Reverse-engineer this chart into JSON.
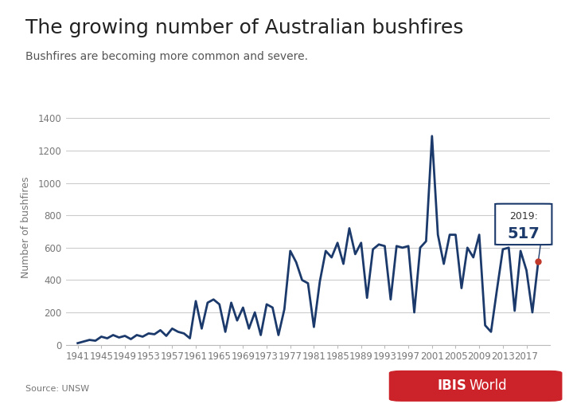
{
  "title": "The growing number of Australian bushfires",
  "subtitle": "Bushfires are becoming more common and severe.",
  "ylabel": "Number of bushfires",
  "source": "Source: UNSW",
  "years": [
    1941,
    1942,
    1943,
    1944,
    1945,
    1946,
    1947,
    1948,
    1949,
    1950,
    1951,
    1952,
    1953,
    1954,
    1955,
    1956,
    1957,
    1958,
    1959,
    1960,
    1961,
    1962,
    1963,
    1964,
    1965,
    1966,
    1967,
    1968,
    1969,
    1970,
    1971,
    1972,
    1973,
    1974,
    1975,
    1976,
    1977,
    1978,
    1979,
    1980,
    1981,
    1982,
    1983,
    1984,
    1985,
    1986,
    1987,
    1988,
    1989,
    1990,
    1991,
    1992,
    1993,
    1994,
    1995,
    1996,
    1997,
    1998,
    1999,
    2000,
    2001,
    2002,
    2003,
    2004,
    2005,
    2006,
    2007,
    2008,
    2009,
    2010,
    2011,
    2012,
    2013,
    2014,
    2015,
    2016,
    2017,
    2018,
    2019
  ],
  "values": [
    10,
    20,
    30,
    25,
    50,
    40,
    60,
    45,
    55,
    35,
    60,
    50,
    70,
    65,
    90,
    55,
    100,
    80,
    70,
    40,
    270,
    100,
    260,
    280,
    250,
    80,
    260,
    150,
    230,
    100,
    200,
    60,
    250,
    230,
    60,
    220,
    580,
    510,
    400,
    380,
    110,
    390,
    580,
    540,
    630,
    500,
    720,
    560,
    630,
    290,
    590,
    620,
    610,
    280,
    610,
    600,
    610,
    200,
    600,
    640,
    1290,
    680,
    500,
    680,
    680,
    350,
    600,
    540,
    680,
    120,
    80,
    340,
    590,
    600,
    210,
    580,
    460,
    200,
    517
  ],
  "line_color": "#1b3a6b",
  "line_width": 2.0,
  "ylim": [
    0,
    1450
  ],
  "yticks": [
    0,
    200,
    400,
    600,
    800,
    1000,
    1200,
    1400
  ],
  "xtick_years": [
    1941,
    1945,
    1949,
    1953,
    1957,
    1961,
    1965,
    1969,
    1973,
    1977,
    1981,
    1985,
    1989,
    1993,
    1997,
    2001,
    2005,
    2009,
    2013,
    2017
  ],
  "xlim_left": 1939,
  "xlim_right": 2021,
  "annotation_year": 2019,
  "annotation_value": 517,
  "bg_color": "#ffffff",
  "grid_color": "#cccccc",
  "dot_color": "#c0392b",
  "box_border_color": "#1b3a6b",
  "ibis_red": "#cc2229",
  "title_fontsize": 18,
  "subtitle_fontsize": 10,
  "ylabel_fontsize": 9,
  "tick_fontsize": 8.5,
  "source_fontsize": 8,
  "annot_label_fontsize": 9,
  "annot_value_fontsize": 14
}
